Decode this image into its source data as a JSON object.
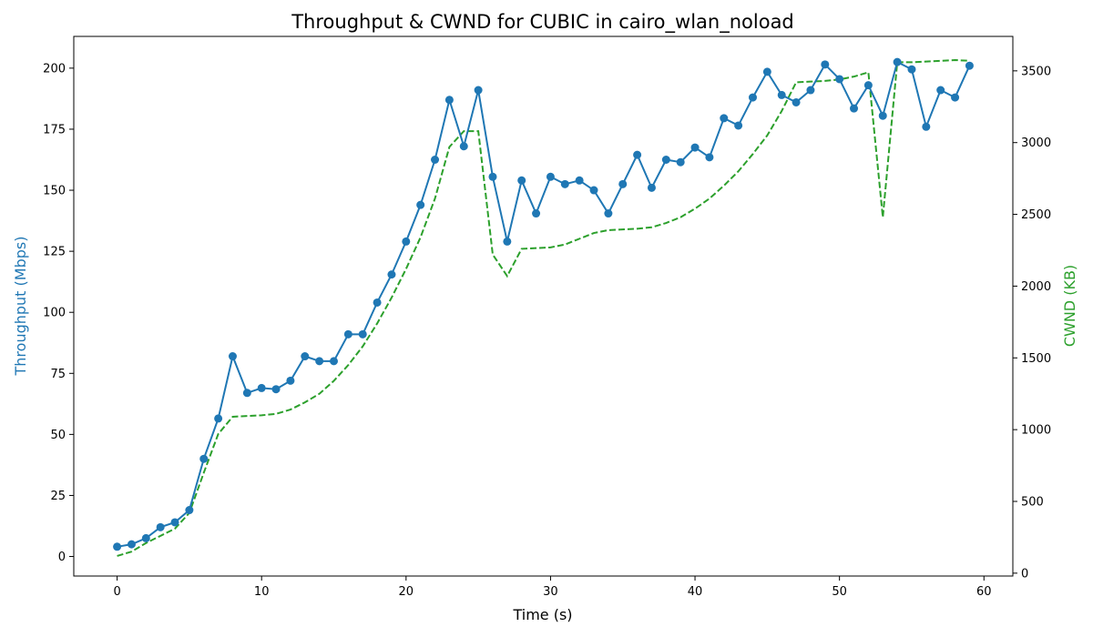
{
  "chart_data": {
    "type": "line",
    "title": "Throughput & CWND for CUBIC in cairo_wlan_noload",
    "xlabel": "Time (s)",
    "ylabel_left": "Throughput (Mbps)",
    "ylabel_right": "CWND (KB)",
    "xlim": [
      -3,
      62
    ],
    "ylim_left": [
      -8,
      213
    ],
    "ylim_right": [
      -20,
      3740
    ],
    "x_ticks": [
      0,
      10,
      20,
      30,
      40,
      50,
      60
    ],
    "y_ticks_left": [
      0,
      25,
      50,
      75,
      100,
      125,
      150,
      175,
      200
    ],
    "y_ticks_right": [
      0,
      500,
      1000,
      1500,
      2000,
      2500,
      3000,
      3500
    ],
    "grid": false,
    "colors": {
      "throughput": "#1f77b4",
      "cwnd": "#2ca02c"
    },
    "series": [
      {
        "axis": "left",
        "style": "solid line with circle markers",
        "x": [
          0,
          1,
          2,
          3,
          4,
          5,
          6,
          7,
          8,
          9,
          10,
          11,
          12,
          13,
          14,
          15,
          16,
          17,
          18,
          19,
          20,
          21,
          22,
          23,
          24,
          25,
          26,
          27,
          28,
          29,
          30,
          31,
          32,
          33,
          34,
          35,
          36,
          37,
          38,
          39,
          40,
          41,
          42,
          43,
          44,
          45,
          46,
          47,
          48,
          49,
          50,
          51,
          52,
          53,
          54,
          55,
          56,
          57,
          58,
          59
        ],
        "values": [
          4,
          5,
          7.5,
          12,
          14,
          19,
          40,
          56.5,
          82,
          67,
          69,
          68.5,
          72,
          82,
          80,
          80,
          91,
          91,
          104,
          115.5,
          129,
          144,
          162.5,
          187,
          168,
          191,
          155.5,
          129,
          154,
          140.5,
          155.5,
          152.5,
          154,
          150,
          140.5,
          152.5,
          164.5,
          151,
          162.5,
          161.5,
          167.5,
          163.5,
          179.5,
          176.5,
          188,
          198.5,
          189,
          186,
          191,
          201.5,
          195.5,
          183.5,
          193,
          180.5,
          202.5,
          199.5,
          176,
          191,
          188,
          201
        ]
      },
      {
        "axis": "right",
        "style": "dashed line",
        "x": [
          0,
          1,
          2,
          3,
          4,
          5,
          6,
          7,
          8,
          9,
          10,
          11,
          12,
          13,
          14,
          15,
          16,
          17,
          18,
          19,
          20,
          21,
          22,
          23,
          24,
          25,
          26,
          27,
          28,
          29,
          30,
          31,
          32,
          33,
          34,
          35,
          36,
          37,
          38,
          39,
          40,
          41,
          42,
          43,
          44,
          45,
          46,
          47,
          48,
          49,
          50,
          51,
          52,
          53,
          54,
          55,
          56,
          57,
          58,
          59
        ],
        "values": [
          120,
          150,
          210,
          260,
          310,
          420,
          700,
          970,
          1090,
          1095,
          1100,
          1110,
          1140,
          1190,
          1250,
          1340,
          1450,
          1580,
          1740,
          1920,
          2120,
          2340,
          2610,
          2970,
          3080,
          3080,
          2220,
          2070,
          2260,
          2265,
          2270,
          2290,
          2330,
          2370,
          2390,
          2395,
          2400,
          2410,
          2440,
          2480,
          2540,
          2610,
          2700,
          2800,
          2920,
          3050,
          3220,
          3420,
          3425,
          3430,
          3440,
          3460,
          3490,
          2480,
          3560,
          3560,
          3565,
          3570,
          3575,
          3570
        ]
      }
    ]
  }
}
